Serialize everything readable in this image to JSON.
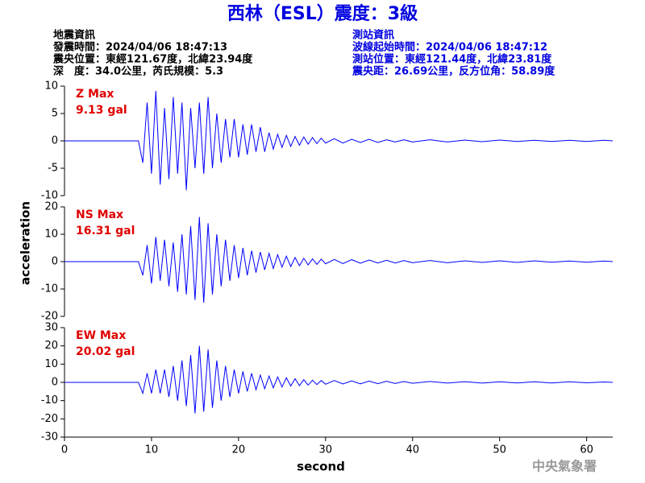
{
  "header": {
    "title": "西林（ESL）震度：3級",
    "left": [
      "地震資訊",
      "發震時間：2024/04/06 18:47:13",
      "震央位置：東經121.67度，北緯23.94度",
      "深　度：34.0公里，芮氏規模：5.3"
    ],
    "right": [
      "測站資訊",
      "波線起始時間：2024/04/06 18:47:12",
      "測站位置：東經121.44度，北緯23.81度",
      "震央距：26.69公里，反方位角：58.89度"
    ]
  },
  "footer": {
    "watermark": "中央氣象署"
  },
  "chart_data": [
    {
      "type": "line",
      "annotation": [
        "Z Max",
        "9.13 gal"
      ],
      "x": [
        0,
        8.5,
        9,
        9.5,
        10,
        10.5,
        11,
        11.5,
        12,
        12.5,
        13,
        13.5,
        14,
        14.5,
        15,
        15.5,
        16,
        16.5,
        17,
        17.5,
        18,
        18.5,
        19,
        19.5,
        20,
        20.5,
        21,
        21.5,
        22,
        22.5,
        23,
        23.5,
        24,
        24.5,
        25,
        25.5,
        26,
        26.5,
        27,
        27.5,
        28,
        28.5,
        29,
        29.5,
        30,
        31,
        32,
        33,
        34,
        35,
        36,
        37,
        38,
        39,
        40,
        42,
        44,
        46,
        48,
        50,
        52,
        54,
        56,
        58,
        60,
        62,
        63
      ],
      "series": [
        {
          "color": "#0000ff",
          "values": [
            0,
            0,
            -4,
            7,
            -6,
            9.13,
            -8,
            6,
            -7,
            8,
            -6,
            7,
            -9,
            6,
            -5,
            7,
            -6,
            8,
            -5,
            5,
            -4,
            4,
            -3,
            4,
            -3,
            3,
            -2.5,
            3,
            -2,
            2.5,
            -2,
            1.5,
            -1.5,
            1.2,
            -1.2,
            1,
            -1,
            0.8,
            -0.8,
            0.7,
            -0.6,
            0.6,
            -0.5,
            0.5,
            -0.4,
            0.4,
            -0.4,
            0.3,
            -0.3,
            0.3,
            -0.3,
            0.2,
            -0.2,
            0.2,
            -0.2,
            0.2,
            -0.2,
            0.15,
            -0.15,
            0.15,
            -0.1,
            0.1,
            -0.1,
            0.1,
            -0.1,
            0.1,
            0
          ]
        }
      ],
      "ylim": [
        -10,
        10
      ],
      "yticks": [
        -10,
        -5,
        0,
        5,
        10
      ],
      "xlim": [
        0,
        63
      ]
    },
    {
      "type": "line",
      "annotation": [
        "NS Max",
        "16.31 gal"
      ],
      "ylabel": "acceleration",
      "x": [
        0,
        8.5,
        9,
        9.5,
        10,
        10.5,
        11,
        11.5,
        12,
        12.5,
        13,
        13.5,
        14,
        14.5,
        15,
        15.5,
        16,
        16.5,
        17,
        17.5,
        18,
        18.5,
        19,
        19.5,
        20,
        20.5,
        21,
        21.5,
        22,
        22.5,
        23,
        23.5,
        24,
        24.5,
        25,
        25.5,
        26,
        26.5,
        27,
        27.5,
        28,
        28.5,
        29,
        29.5,
        30,
        31,
        32,
        33,
        34,
        35,
        36,
        37,
        38,
        39,
        40,
        42,
        44,
        46,
        48,
        50,
        52,
        54,
        56,
        58,
        60,
        62,
        63
      ],
      "series": [
        {
          "color": "#0000ff",
          "values": [
            0,
            0,
            -5,
            6,
            -8,
            9,
            -7,
            8,
            -9,
            7,
            -11,
            10,
            -12,
            13,
            -14,
            16.31,
            -15,
            14,
            -12,
            10,
            -9,
            8,
            -7,
            6,
            -6,
            5,
            -5,
            4,
            -4,
            3.5,
            -3,
            3,
            -2.5,
            2.5,
            -2,
            2,
            -1.8,
            1.5,
            -1.5,
            1.2,
            -1.2,
            1,
            -1,
            0.9,
            -0.8,
            0.8,
            -0.7,
            0.7,
            -0.6,
            0.6,
            -0.5,
            0.5,
            -0.5,
            0.4,
            -0.4,
            0.4,
            -0.4,
            0.3,
            -0.3,
            0.3,
            -0.3,
            0.3,
            -0.2,
            0.2,
            -0.2,
            0.2,
            0
          ]
        }
      ],
      "ylim": [
        -20,
        20
      ],
      "yticks": [
        -20,
        -10,
        0,
        10,
        20
      ],
      "xlim": [
        0,
        63
      ]
    },
    {
      "type": "line",
      "annotation": [
        "EW Max",
        "20.02 gal"
      ],
      "xlabel": "second",
      "x": [
        0,
        8.5,
        9,
        9.5,
        10,
        10.5,
        11,
        11.5,
        12,
        12.5,
        13,
        13.5,
        14,
        14.5,
        15,
        15.5,
        16,
        16.5,
        17,
        17.5,
        18,
        18.5,
        19,
        19.5,
        20,
        20.5,
        21,
        21.5,
        22,
        22.5,
        23,
        23.5,
        24,
        24.5,
        25,
        25.5,
        26,
        26.5,
        27,
        27.5,
        28,
        28.5,
        29,
        29.5,
        30,
        31,
        32,
        33,
        34,
        35,
        36,
        37,
        38,
        39,
        40,
        42,
        44,
        46,
        48,
        50,
        52,
        54,
        56,
        58,
        60,
        62,
        63
      ],
      "series": [
        {
          "color": "#0000ff",
          "values": [
            0,
            0,
            -6,
            5,
            -6,
            7,
            -6,
            7,
            -8,
            9,
            -10,
            12,
            -13,
            15,
            -17,
            20.02,
            -16,
            18,
            -14,
            12,
            -10,
            9,
            -8,
            7,
            -6,
            6,
            -5,
            5,
            -4,
            4,
            -3.5,
            3.5,
            -3,
            3,
            -2.5,
            2.5,
            -2,
            2,
            -1.8,
            1.5,
            -1.5,
            1.2,
            -1.2,
            1,
            -1,
            1,
            -0.9,
            0.8,
            -0.8,
            0.7,
            -0.7,
            0.6,
            -0.6,
            0.5,
            -0.5,
            0.5,
            -0.4,
            0.4,
            -0.4,
            0.3,
            -0.3,
            0.3,
            -0.3,
            0.3,
            -0.2,
            0.2,
            0
          ]
        }
      ],
      "ylim": [
        -30,
        30
      ],
      "yticks": [
        -30,
        -20,
        -10,
        0,
        10,
        20,
        30
      ],
      "xlim": [
        0,
        63
      ],
      "xticks": [
        0,
        10,
        20,
        30,
        40,
        50,
        60
      ]
    }
  ]
}
